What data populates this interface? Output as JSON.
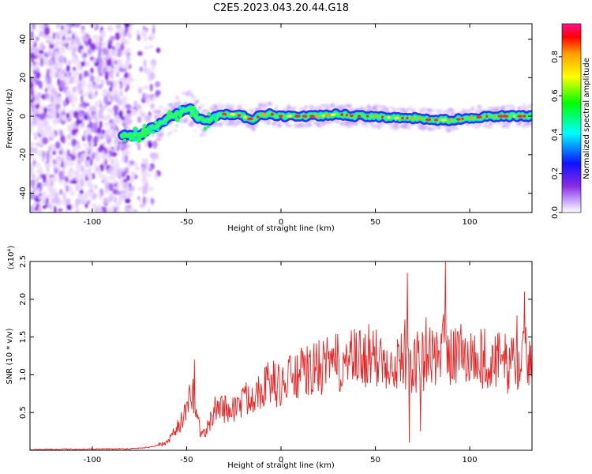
{
  "title": "C2E5.2023.043.20.44.G18",
  "colors": {
    "snr_line": "#ee2222",
    "spectral_ridge": "#ff2a2a",
    "spectral_halo": "#00e5c0",
    "noise": "#8a2be2"
  },
  "chart_data": [
    {
      "type": "heatmap",
      "name": "spectrogram",
      "xlabel": "Height of straight line (km)",
      "ylabel": "Frequency (Hz)",
      "xlim": [
        -133,
        133
      ],
      "ylim": [
        -50,
        48
      ],
      "xticks": [
        -100,
        -50,
        0,
        50,
        100
      ],
      "yticks": [
        -40,
        -20,
        0,
        20,
        40
      ],
      "colorbar": {
        "label": "Normalized spectral amplitude",
        "range": [
          0,
          0.97
        ],
        "ticks": [
          0.0,
          0.2,
          0.4,
          0.6,
          0.8
        ],
        "colormap": [
          "#ffffff",
          "#c8a8ff",
          "#8a2be2",
          "#1010ff",
          "#00ffff",
          "#00ff00",
          "#ffff00",
          "#ffa000",
          "#ff0000",
          "#ff1090"
        ]
      },
      "ridge": {
        "x": [
          -83,
          -75,
          -70,
          -64,
          -58,
          -52,
          -48,
          -44,
          -40,
          -35,
          -30,
          -25,
          -20,
          -15,
          -10,
          -5,
          0,
          10,
          20,
          30,
          40,
          50,
          60,
          70,
          80,
          90,
          100,
          110,
          120,
          133
        ],
        "y": [
          -10,
          -10,
          -7,
          -4,
          0,
          3,
          4,
          -1,
          -3,
          0,
          1,
          1,
          0,
          -2,
          1,
          1,
          0,
          0,
          0,
          1,
          0,
          0,
          -1,
          -1,
          -2,
          -2,
          -1,
          0,
          0,
          0
        ]
      },
      "noise_region_x": [
        -133,
        -65
      ]
    },
    {
      "type": "line",
      "name": "snr",
      "xlabel": "Height of straight line (km)",
      "ylabel": "SNR (10 * v/v)",
      "y_multiplier": "(x10⁴)",
      "xlim": [
        -133,
        133
      ],
      "ylim": [
        0,
        2.5
      ],
      "xticks": [
        -100,
        -50,
        0,
        50,
        100
      ],
      "yticks": [
        0.5,
        1.0,
        1.5,
        2.0,
        2.5
      ],
      "envelope": {
        "x": [
          -133,
          -80,
          -70,
          -60,
          -55,
          -50,
          -47,
          -45,
          -42,
          -40,
          -37,
          -34,
          -30,
          -25,
          -20,
          -15,
          -10,
          -5,
          0,
          5,
          10,
          15,
          20,
          25,
          30,
          40,
          50,
          60,
          70,
          80,
          90,
          100,
          110,
          120,
          133
        ],
        "y": [
          0.01,
          0.02,
          0.04,
          0.1,
          0.3,
          0.5,
          0.8,
          0.5,
          0.2,
          0.25,
          0.4,
          0.6,
          0.55,
          0.55,
          0.65,
          0.75,
          0.85,
          0.9,
          0.85,
          0.95,
          1.0,
          1.05,
          1.1,
          1.12,
          1.15,
          1.2,
          1.2,
          1.22,
          1.15,
          1.25,
          1.3,
          1.25,
          1.2,
          1.15,
          1.25
        ]
      },
      "noise_amplitude_fraction": 0.35,
      "peaks": [
        {
          "x": -46,
          "y": 1.2
        },
        {
          "x": 67,
          "y": 2.35
        },
        {
          "x": 87,
          "y": 2.5
        },
        {
          "x": 129,
          "y": 2.1
        }
      ],
      "dips": [
        {
          "x": 68,
          "y": 0.1
        },
        {
          "x": 74,
          "y": 0.25
        }
      ]
    }
  ]
}
